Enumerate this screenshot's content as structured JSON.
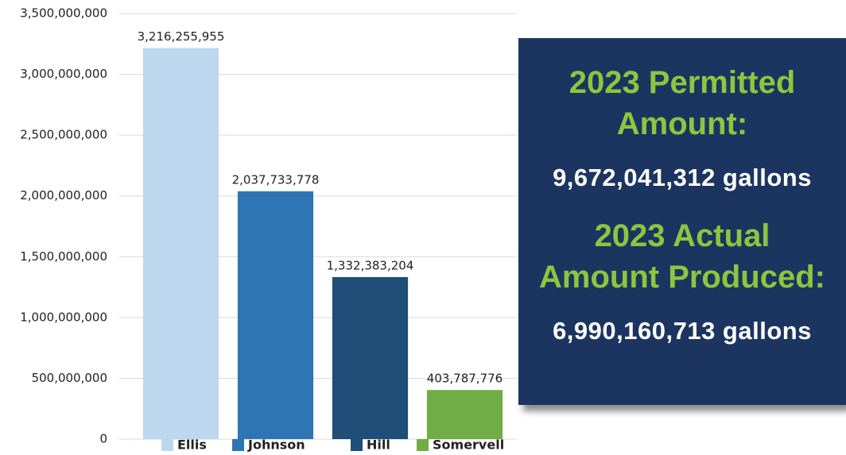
{
  "chart_data": {
    "type": "bar",
    "categories": [
      "Ellis",
      "Johnson",
      "Hill",
      "Somervell"
    ],
    "values": [
      3216255955,
      2037733778,
      1332383204,
      403787776
    ],
    "value_labels": [
      "3,216,255,955",
      "2,037,733,778",
      "1,332,383,204",
      "403,787,776"
    ],
    "colors": [
      "#bdd7ee",
      "#2e75b6",
      "#1f4e79",
      "#70ad47"
    ],
    "ylim": [
      0,
      3500000000
    ],
    "yticks": [
      0,
      {
        "value": 500000000,
        "label": "500,000,000"
      },
      {
        "value": 1000000000,
        "label": "1,000,000,000"
      },
      {
        "value": 1500000000,
        "label": "1,500,000,000"
      },
      {
        "value": 2000000000,
        "label": "2,000,000,000"
      },
      {
        "value": 2500000000,
        "label": "2,500,000,000"
      },
      {
        "value": 3000000000,
        "label": "3,000,000,000"
      },
      {
        "value": 3500000000,
        "label": "3,500,000,000"
      }
    ],
    "grid": true,
    "legend": "bottom"
  },
  "callout": {
    "permitted_heading": [
      "2023 Permitted",
      "Amount:"
    ],
    "permitted_amount": "9,672,041,312 gallons",
    "actual_heading": [
      "2023 Actual",
      "Amount Produced:"
    ],
    "actual_amount": "6,990,160,713 gallons"
  }
}
